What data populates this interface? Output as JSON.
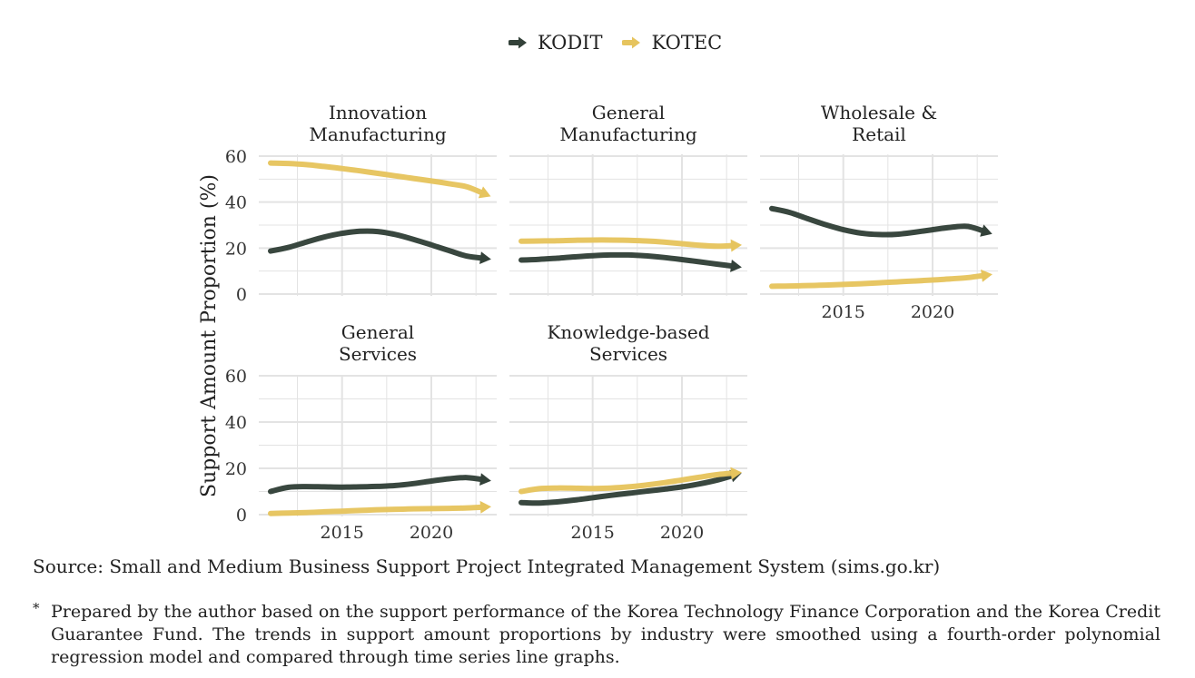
{
  "colors": {
    "kodit": "#334139",
    "kotec": "#e6c45e",
    "grid": "#e3e3e3"
  },
  "legend": {
    "items": [
      {
        "name": "KODIT",
        "color": "#334139"
      },
      {
        "name": "KOTEC",
        "color": "#e6c45e"
      }
    ]
  },
  "chart_data": {
    "type": "line",
    "ylabel": "Support Amount Proportion (%)",
    "ylim": [
      0,
      60
    ],
    "yticks": [
      0,
      20,
      40,
      60
    ],
    "xlim": [
      2011,
      2023
    ],
    "xticks": [
      2015,
      2020
    ],
    "panels": [
      {
        "title": "Innovation\nManufacturing",
        "series": [
          {
            "name": "KODIT",
            "x": [
              2011,
              2012,
              2013,
              2014,
              2015,
              2016,
              2017,
              2018,
              2019,
              2020,
              2021,
              2022,
              2023
            ],
            "values": [
              18.7,
              20.3,
              22.6,
              24.8,
              26.4,
              27.3,
              27.2,
              25.9,
              23.8,
              21.4,
              18.9,
              16.5,
              15.5
            ]
          },
          {
            "name": "KOTEC",
            "x": [
              2011,
              2012,
              2013,
              2014,
              2015,
              2016,
              2017,
              2018,
              2019,
              2020,
              2021,
              2022,
              2023
            ],
            "values": [
              57.0,
              56.8,
              56.3,
              55.5,
              54.6,
              53.6,
              52.5,
              51.4,
              50.3,
              49.2,
              48.0,
              46.6,
              43.5
            ]
          }
        ]
      },
      {
        "title": "General\nManufacturing",
        "series": [
          {
            "name": "KODIT",
            "x": [
              2011,
              2012,
              2013,
              2014,
              2015,
              2016,
              2017,
              2018,
              2019,
              2020,
              2021,
              2022,
              2023
            ],
            "values": [
              14.8,
              15.1,
              15.6,
              16.2,
              16.7,
              17.0,
              17.0,
              16.6,
              15.9,
              15.0,
              14.0,
              13.0,
              12.0
            ]
          },
          {
            "name": "KOTEC",
            "x": [
              2011,
              2012,
              2013,
              2014,
              2015,
              2016,
              2017,
              2018,
              2019,
              2020,
              2021,
              2022,
              2023
            ],
            "values": [
              23.0,
              23.1,
              23.2,
              23.4,
              23.5,
              23.5,
              23.4,
              23.1,
              22.6,
              21.9,
              21.2,
              20.8,
              21.2
            ]
          }
        ]
      },
      {
        "title": "Wholesale &\nRetail",
        "series": [
          {
            "name": "KODIT",
            "x": [
              2011,
              2012,
              2013,
              2014,
              2015,
              2016,
              2017,
              2018,
              2019,
              2020,
              2021,
              2022,
              2023
            ],
            "values": [
              37.2,
              35.5,
              32.8,
              30.2,
              28.0,
              26.5,
              25.9,
              26.0,
              26.9,
              28.0,
              29.0,
              29.4,
              27.0
            ]
          },
          {
            "name": "KOTEC",
            "x": [
              2011,
              2012,
              2013,
              2014,
              2015,
              2016,
              2017,
              2018,
              2019,
              2020,
              2021,
              2022,
              2023
            ],
            "values": [
              3.4,
              3.5,
              3.7,
              3.9,
              4.2,
              4.5,
              4.9,
              5.3,
              5.7,
              6.1,
              6.6,
              7.2,
              8.2
            ]
          }
        ]
      },
      {
        "title": "General\nServices",
        "series": [
          {
            "name": "KODIT",
            "x": [
              2011,
              2012,
              2013,
              2014,
              2015,
              2016,
              2017,
              2018,
              2019,
              2020,
              2021,
              2022,
              2023
            ],
            "values": [
              10.0,
              11.8,
              12.1,
              12.0,
              11.9,
              12.0,
              12.2,
              12.6,
              13.4,
              14.5,
              15.5,
              16.0,
              15.0
            ]
          },
          {
            "name": "KOTEC",
            "x": [
              2011,
              2012,
              2013,
              2014,
              2015,
              2016,
              2017,
              2018,
              2019,
              2020,
              2021,
              2022,
              2023
            ],
            "values": [
              0.5,
              0.7,
              0.9,
              1.2,
              1.5,
              1.8,
              2.1,
              2.3,
              2.5,
              2.6,
              2.7,
              2.9,
              3.3
            ]
          }
        ]
      },
      {
        "title": "Knowledge-based\nServices",
        "series": [
          {
            "name": "KODIT",
            "x": [
              2011,
              2012,
              2013,
              2014,
              2015,
              2016,
              2017,
              2018,
              2019,
              2020,
              2021,
              2022,
              2023
            ],
            "values": [
              5.2,
              5.0,
              5.5,
              6.3,
              7.3,
              8.3,
              9.2,
              10.1,
              11.0,
              12.0,
              13.3,
              15.0,
              17.2
            ]
          },
          {
            "name": "KOTEC",
            "x": [
              2011,
              2012,
              2013,
              2014,
              2015,
              2016,
              2017,
              2018,
              2019,
              2020,
              2021,
              2022,
              2023
            ],
            "values": [
              10.0,
              11.2,
              11.5,
              11.4,
              11.3,
              11.5,
              12.0,
              12.8,
              13.8,
              15.0,
              16.2,
              17.3,
              18.0
            ]
          }
        ]
      }
    ]
  },
  "source": "Source: Small and Medium Business Support Project Integrated Management System (sims.go.kr)",
  "note": {
    "marker": "*",
    "text": "Prepared by the author based on the support performance of the Korea Technology Finance Corporation and the Korea Credit Guarantee Fund. The trends in support amount proportions by industry were smoothed using a fourth-order polynomial regression model and compared through time series line graphs."
  }
}
